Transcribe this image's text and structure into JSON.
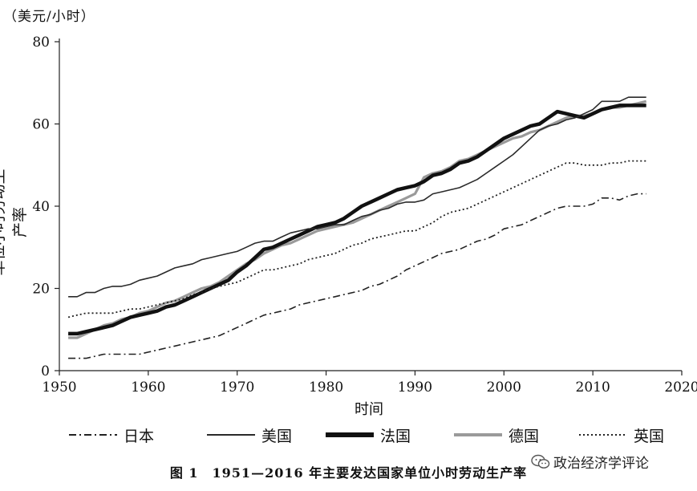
{
  "unit_label": "（美元/小时）",
  "caption": "图 1　1951—2016 年主要发达国家单位小时劳动生产率",
  "watermark": "政治经济学评论",
  "chart_data": {
    "type": "line",
    "title": "",
    "xlabel": "时间",
    "ylabel": "单位小时劳动生产率",
    "xlim": [
      1950,
      2020
    ],
    "ylim": [
      0,
      80
    ],
    "x_ticks": [
      1950,
      1960,
      1970,
      1980,
      1990,
      2000,
      2010,
      2020
    ],
    "y_ticks": [
      0,
      20,
      40,
      60,
      80
    ],
    "grid": false,
    "legend_position": "bottom",
    "series": [
      {
        "name": "日本",
        "style": "dash-dot",
        "color": "#222222",
        "x": [
          1951,
          1952,
          1953,
          1954,
          1955,
          1956,
          1957,
          1958,
          1959,
          1960,
          1961,
          1962,
          1963,
          1964,
          1965,
          1966,
          1967,
          1968,
          1969,
          1970,
          1971,
          1972,
          1973,
          1974,
          1975,
          1976,
          1977,
          1978,
          1979,
          1980,
          1981,
          1982,
          1983,
          1984,
          1985,
          1986,
          1987,
          1988,
          1989,
          1990,
          1991,
          1992,
          1993,
          1994,
          1995,
          1996,
          1997,
          1998,
          1999,
          2000,
          2001,
          2002,
          2003,
          2004,
          2005,
          2006,
          2007,
          2008,
          2009,
          2010,
          2011,
          2012,
          2013,
          2014,
          2015,
          2016
        ],
        "values": [
          3.0,
          3.0,
          3.0,
          3.5,
          4.0,
          4.0,
          4.0,
          4.0,
          4.0,
          4.5,
          5.0,
          5.5,
          6.0,
          6.5,
          7.0,
          7.5,
          8.0,
          8.5,
          9.5,
          10.5,
          11.5,
          12.5,
          13.5,
          14.0,
          14.5,
          15.0,
          16.0,
          16.5,
          17.0,
          17.5,
          18.0,
          18.5,
          19.0,
          19.5,
          20.5,
          21.0,
          22.0,
          23.0,
          24.5,
          25.5,
          26.5,
          27.5,
          28.5,
          29.0,
          29.5,
          30.5,
          31.5,
          32.0,
          33.0,
          34.5,
          35.0,
          35.5,
          36.5,
          37.5,
          38.5,
          39.5,
          40.0,
          40.0,
          40.0,
          40.5,
          42.0,
          42.0,
          41.5,
          42.5,
          43.0,
          43.0
        ]
      },
      {
        "name": "美国",
        "style": "solid-thin",
        "color": "#2a2a2a",
        "x": [
          1951,
          1952,
          1953,
          1954,
          1955,
          1956,
          1957,
          1958,
          1959,
          1960,
          1961,
          1962,
          1963,
          1964,
          1965,
          1966,
          1967,
          1968,
          1969,
          1970,
          1971,
          1972,
          1973,
          1974,
          1975,
          1976,
          1977,
          1978,
          1979,
          1980,
          1981,
          1982,
          1983,
          1984,
          1985,
          1986,
          1987,
          1988,
          1989,
          1990,
          1991,
          1992,
          1993,
          1994,
          1995,
          1996,
          1997,
          1998,
          1999,
          2000,
          2001,
          2002,
          2003,
          2004,
          2005,
          2006,
          2007,
          2008,
          2009,
          2010,
          2011,
          2012,
          2013,
          2014,
          2015,
          2016
        ],
        "values": [
          18.0,
          18.0,
          19.0,
          19.0,
          20.0,
          20.5,
          20.5,
          21.0,
          22.0,
          22.5,
          23.0,
          24.0,
          25.0,
          25.5,
          26.0,
          27.0,
          27.5,
          28.0,
          28.5,
          29.0,
          30.0,
          31.0,
          31.5,
          31.5,
          32.5,
          33.5,
          34.0,
          34.5,
          34.5,
          35.0,
          35.5,
          35.5,
          36.5,
          37.5,
          38.0,
          39.0,
          39.5,
          40.5,
          41.0,
          41.0,
          41.5,
          43.0,
          43.5,
          44.0,
          44.5,
          45.5,
          46.5,
          48.0,
          49.5,
          51.0,
          52.5,
          54.5,
          56.5,
          58.5,
          59.5,
          60.0,
          61.0,
          61.5,
          62.5,
          63.5,
          65.5,
          65.5,
          65.5,
          66.5,
          66.5,
          66.5
        ]
      },
      {
        "name": "法国",
        "style": "solid-thick",
        "color": "#111111",
        "x": [
          1951,
          1952,
          1953,
          1954,
          1955,
          1956,
          1957,
          1958,
          1959,
          1960,
          1961,
          1962,
          1963,
          1964,
          1965,
          1966,
          1967,
          1968,
          1969,
          1970,
          1971,
          1972,
          1973,
          1974,
          1975,
          1976,
          1977,
          1978,
          1979,
          1980,
          1981,
          1982,
          1983,
          1984,
          1985,
          1986,
          1987,
          1988,
          1989,
          1990,
          1991,
          1992,
          1993,
          1994,
          1995,
          1996,
          1997,
          1998,
          1999,
          2000,
          2001,
          2002,
          2003,
          2004,
          2005,
          2006,
          2007,
          2008,
          2009,
          2010,
          2011,
          2012,
          2013,
          2014,
          2015,
          2016
        ],
        "values": [
          9.0,
          9.0,
          9.5,
          10.0,
          10.5,
          11.0,
          12.0,
          13.0,
          13.5,
          14.0,
          14.5,
          15.5,
          16.0,
          17.0,
          18.0,
          19.0,
          20.0,
          21.0,
          22.0,
          24.0,
          25.5,
          27.5,
          29.5,
          30.0,
          31.0,
          32.0,
          33.0,
          34.0,
          35.0,
          35.5,
          36.0,
          37.0,
          38.5,
          40.0,
          41.0,
          42.0,
          43.0,
          44.0,
          44.5,
          45.0,
          46.0,
          47.5,
          48.0,
          49.0,
          50.5,
          51.0,
          52.0,
          53.5,
          55.0,
          56.5,
          57.5,
          58.5,
          59.5,
          60.0,
          61.5,
          63.0,
          62.5,
          62.0,
          61.5,
          62.5,
          63.5,
          64.0,
          64.5,
          64.5,
          64.5,
          64.5
        ]
      },
      {
        "name": "德国",
        "style": "solid-gray",
        "color": "#9a9a9a",
        "x": [
          1951,
          1952,
          1953,
          1954,
          1955,
          1956,
          1957,
          1958,
          1959,
          1960,
          1961,
          1962,
          1963,
          1964,
          1965,
          1966,
          1967,
          1968,
          1969,
          1970,
          1971,
          1972,
          1973,
          1974,
          1975,
          1976,
          1977,
          1978,
          1979,
          1980,
          1981,
          1982,
          1983,
          1984,
          1985,
          1986,
          1987,
          1988,
          1989,
          1990,
          1991,
          1992,
          1993,
          1994,
          1995,
          1996,
          1997,
          1998,
          1999,
          2000,
          2001,
          2002,
          2003,
          2004,
          2005,
          2006,
          2007,
          2008,
          2009,
          2010,
          2011,
          2012,
          2013,
          2014,
          2015,
          2016
        ],
        "values": [
          8.0,
          8.0,
          9.0,
          10.0,
          11.0,
          11.5,
          12.5,
          13.0,
          14.0,
          14.5,
          15.5,
          16.5,
          17.0,
          18.0,
          19.0,
          20.0,
          20.5,
          21.5,
          23.0,
          24.5,
          26.0,
          27.0,
          28.5,
          29.5,
          30.5,
          31.0,
          32.0,
          33.0,
          34.0,
          34.5,
          35.0,
          35.5,
          36.0,
          37.0,
          38.0,
          39.0,
          40.0,
          41.0,
          42.0,
          43.0,
          47.0,
          48.0,
          48.5,
          49.5,
          51.0,
          51.5,
          52.5,
          53.5,
          54.5,
          55.5,
          56.5,
          57.0,
          58.0,
          58.5,
          59.5,
          60.5,
          61.5,
          62.0,
          62.0,
          62.5,
          63.5,
          64.0,
          64.0,
          64.5,
          65.0,
          65.5
        ]
      },
      {
        "name": "英国",
        "style": "dotted",
        "color": "#222222",
        "x": [
          1951,
          1952,
          1953,
          1954,
          1955,
          1956,
          1957,
          1958,
          1959,
          1960,
          1961,
          1962,
          1963,
          1964,
          1965,
          1966,
          1967,
          1968,
          1969,
          1970,
          1971,
          1972,
          1973,
          1974,
          1975,
          1976,
          1977,
          1978,
          1979,
          1980,
          1981,
          1982,
          1983,
          1984,
          1985,
          1986,
          1987,
          1988,
          1989,
          1990,
          1991,
          1992,
          1993,
          1994,
          1995,
          1996,
          1997,
          1998,
          1999,
          2000,
          2001,
          2002,
          2003,
          2004,
          2005,
          2006,
          2007,
          2008,
          2009,
          2010,
          2011,
          2012,
          2013,
          2014,
          2015,
          2016
        ],
        "values": [
          13.0,
          13.5,
          14.0,
          14.0,
          14.0,
          14.0,
          14.5,
          15.0,
          15.0,
          15.5,
          16.0,
          16.5,
          17.0,
          17.5,
          18.5,
          19.0,
          20.0,
          20.5,
          21.0,
          21.5,
          22.5,
          23.5,
          24.5,
          24.5,
          25.0,
          25.5,
          26.0,
          27.0,
          27.5,
          28.0,
          28.5,
          29.5,
          30.5,
          31.0,
          32.0,
          32.5,
          33.0,
          33.5,
          34.0,
          34.0,
          35.0,
          36.0,
          37.5,
          38.5,
          39.0,
          39.5,
          40.5,
          41.5,
          42.5,
          43.5,
          44.5,
          45.5,
          46.5,
          47.5,
          48.5,
          49.5,
          50.5,
          50.5,
          50.0,
          50.0,
          50.0,
          50.5,
          50.5,
          51.0,
          51.0,
          51.0
        ]
      }
    ]
  }
}
